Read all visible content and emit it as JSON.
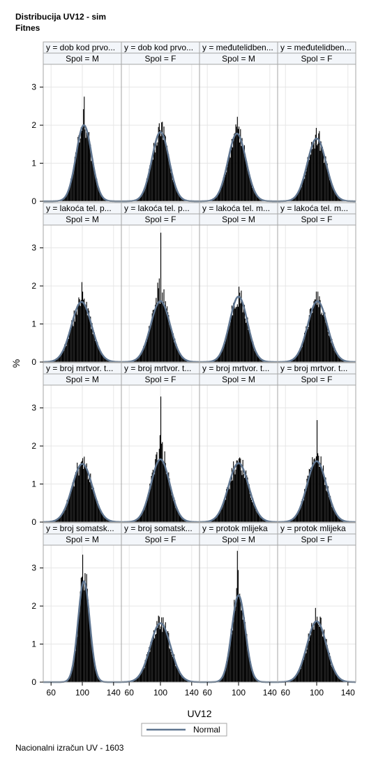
{
  "title_line1": "Distribucija UV12 - sim",
  "title_line2": "Fitnes",
  "footnote": "Nacionalni izračun UV - 1603",
  "chart_data": {
    "type": "histogram-panel",
    "xlabel": "UV12",
    "ylabel": "%",
    "xlim": [
      50,
      150
    ],
    "ylim": [
      0,
      3.6
    ],
    "xticks": [
      60,
      100,
      140
    ],
    "yticks": [
      0,
      1,
      2,
      3
    ],
    "legend": {
      "position": "bottom",
      "entries": [
        "Normal"
      ]
    },
    "colors": {
      "bars": "#000000",
      "curve": "#5f7590",
      "grid": "#e6e6e6",
      "frame": "#a6a6a6",
      "header_bg": "#f3f6fa"
    },
    "panels": [
      {
        "trait": "y = dob kod prvo...",
        "sex": "Spol = M",
        "mean": 102,
        "sd": 10,
        "peak": 2.0,
        "bar_max": 2.75
      },
      {
        "trait": "y = dob kod prvo...",
        "sex": "Spol = F",
        "mean": 100,
        "sd": 11,
        "peak": 1.82,
        "bar_max": 2.05
      },
      {
        "trait": "y = međutelidben...",
        "sex": "Spol = M",
        "mean": 98,
        "sd": 11.5,
        "peak": 1.78,
        "bar_max": 2.22
      },
      {
        "trait": "y = međutelidben...",
        "sex": "Spol = F",
        "mean": 100,
        "sd": 12,
        "peak": 1.65,
        "bar_max": 1.75
      },
      {
        "trait": "y = lakoća tel. p...",
        "sex": "Spol = M",
        "mean": 99,
        "sd": 13,
        "peak": 1.58,
        "bar_max": 2.1
      },
      {
        "trait": "y = lakoća tel. p...",
        "sex": "Spol = F",
        "mean": 100,
        "sd": 12.5,
        "peak": 1.6,
        "bar_max": 3.4
      },
      {
        "trait": "y = lakoća tel. m...",
        "sex": "Spol = M",
        "mean": 100,
        "sd": 11.5,
        "peak": 1.72,
        "bar_max": 1.98
      },
      {
        "trait": "y = lakoća tel. m...",
        "sex": "Spol = F",
        "mean": 101,
        "sd": 12.5,
        "peak": 1.6,
        "bar_max": 1.85
      },
      {
        "trait": "y = broj mrtvor. t...",
        "sex": "Spol = M",
        "mean": 100,
        "sd": 13,
        "peak": 1.53,
        "bar_max": 1.68
      },
      {
        "trait": "y = broj mrtvor. t...",
        "sex": "Spol = F",
        "mean": 100,
        "sd": 12,
        "peak": 1.65,
        "bar_max": 3.3
      },
      {
        "trait": "y = broj mrtvor. t...",
        "sex": "Spol = M",
        "mean": 100,
        "sd": 13,
        "peak": 1.55,
        "bar_max": 1.62
      },
      {
        "trait": "y = broj mrtvor. t...",
        "sex": "Spol = F",
        "mean": 100,
        "sd": 12.5,
        "peak": 1.6,
        "bar_max": 2.68
      },
      {
        "trait": "y = broj somatsk...",
        "sex": "Spol = M",
        "mean": 102,
        "sd": 7.5,
        "peak": 2.65,
        "bar_max": 3.35
      },
      {
        "trait": "y = broj somatsk...",
        "sex": "Spol = F",
        "mean": 100,
        "sd": 13,
        "peak": 1.55,
        "bar_max": 1.72
      },
      {
        "trait": "y = protok mlijeka",
        "sex": "Spol = M",
        "mean": 100,
        "sd": 8.7,
        "peak": 2.28,
        "bar_max": 3.45
      },
      {
        "trait": "y = protok mlijeka",
        "sex": "Spol = F",
        "mean": 100,
        "sd": 12.5,
        "peak": 1.6,
        "bar_max": 1.95
      }
    ]
  }
}
